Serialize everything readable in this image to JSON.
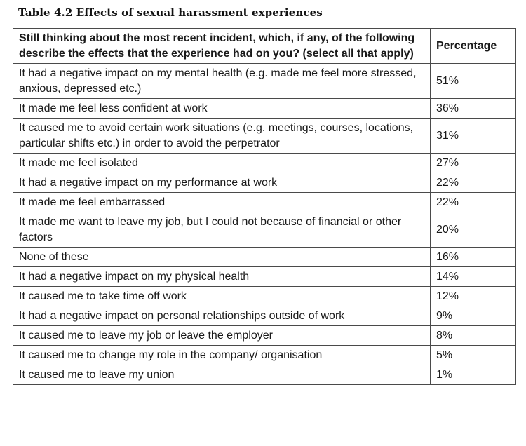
{
  "table": {
    "caption": "Table 4.2 Effects of sexual harassment experiences",
    "headers": {
      "question": "Still thinking about the most recent incident, which, if any, of the following describe the effects that the experience had on you? (select all that apply)",
      "percentage": "Percentage"
    },
    "rows": [
      {
        "label": "It had a negative impact on my mental health (e.g. made me feel more stressed, anxious, depressed etc.)",
        "value": "51%"
      },
      {
        "label": "It made me feel less confident at work",
        "value": "36%"
      },
      {
        "label": "It caused me to avoid certain work situations (e.g. meetings, courses, locations, particular shifts etc.) in order to avoid the perpetrator",
        "value": "31%"
      },
      {
        "label": "It made me feel isolated",
        "value": "27%"
      },
      {
        "label": "It had a negative impact on my performance at work",
        "value": "22%"
      },
      {
        "label": "It made me feel embarrassed",
        "value": "22%"
      },
      {
        "label": "It made me want to leave my job, but I could not because of financial or other factors",
        "value": "20%"
      },
      {
        "label": "None of these",
        "value": "16%"
      },
      {
        "label": "It had a negative impact on my physical health",
        "value": "14%"
      },
      {
        "label": "It caused me to take time off work",
        "value": "12%"
      },
      {
        "label": "It had a negative impact on personal relationships outside of work",
        "value": "9%"
      },
      {
        "label": "It caused me to leave my job or leave the employer",
        "value": "8%"
      },
      {
        "label": "It caused me to change my role in the company/ organisation",
        "value": "5%"
      },
      {
        "label": "It caused me to leave my union",
        "value": "1%"
      }
    ]
  }
}
